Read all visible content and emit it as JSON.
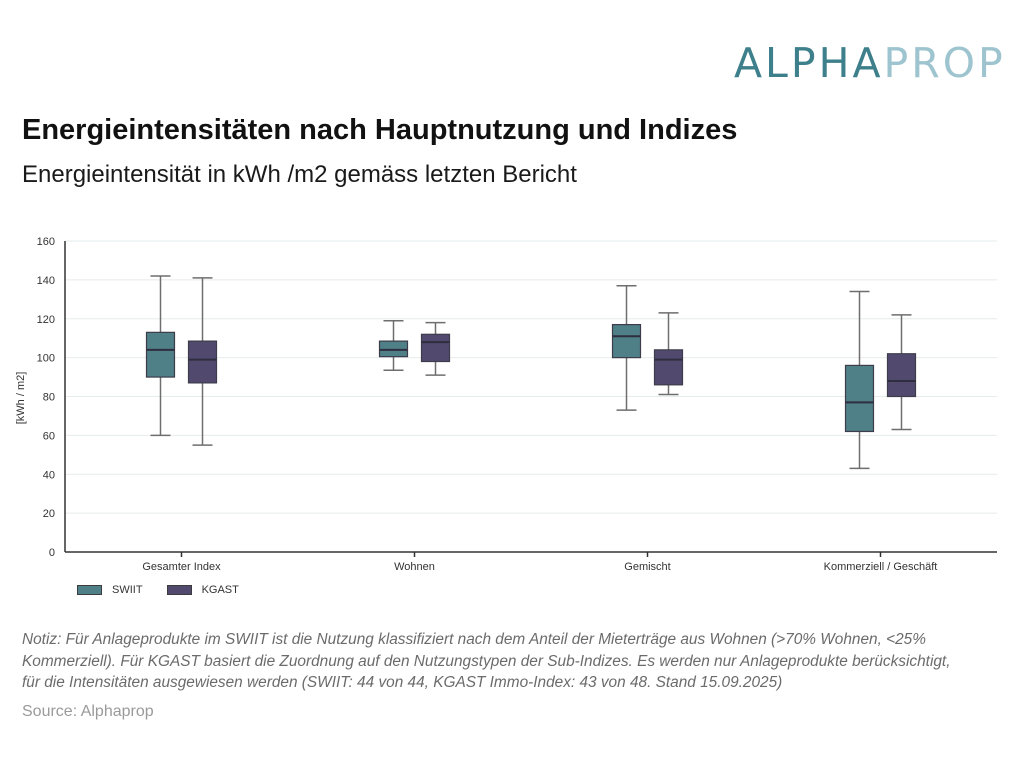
{
  "logo": {
    "part1": "ALPHA",
    "part2": "PROP"
  },
  "header": {
    "title": "Energieintensitäten nach Hauptnutzung und Indizes",
    "subtitle": "Energieintensität in kWh /m2 gemäss letzten Bericht"
  },
  "chart_data": {
    "type": "box",
    "title": "Energieintensitäten nach Hauptnutzung und Indizes",
    "ylabel": "[kWh / m2]",
    "xlabel": "",
    "ylim": [
      0,
      160
    ],
    "yticks": [
      0,
      20,
      40,
      60,
      80,
      100,
      120,
      140,
      160
    ],
    "grid": true,
    "legend": "bottom-left",
    "categories": [
      "Gesamter Index",
      "Wohnen",
      "Gemischt",
      "Kommerziell / Geschäft"
    ],
    "series": [
      {
        "name": "SWIIT",
        "color": "#4f7f87",
        "boxes": [
          {
            "min": 60,
            "q1": 90,
            "median": 104,
            "q3": 113,
            "max": 142
          },
          {
            "min": 93.5,
            "q1": 100.5,
            "median": 104,
            "q3": 108.5,
            "max": 119
          },
          {
            "min": 73,
            "q1": 100,
            "median": 111,
            "q3": 117,
            "max": 137
          },
          {
            "min": 43,
            "q1": 62,
            "median": 77,
            "q3": 96,
            "max": 134
          }
        ]
      },
      {
        "name": "KGAST",
        "color": "#524a6e",
        "boxes": [
          {
            "min": 55,
            "q1": 87,
            "median": 99,
            "q3": 108.5,
            "max": 141
          },
          {
            "min": 91,
            "q1": 98,
            "median": 108,
            "q3": 112,
            "max": 118
          },
          {
            "min": 81,
            "q1": 86,
            "median": 99,
            "q3": 104,
            "max": 123
          },
          {
            "min": 63,
            "q1": 80,
            "median": 88,
            "q3": 102,
            "max": 122
          }
        ]
      }
    ]
  },
  "notes": {
    "lines": [
      "Notiz: Für Anlageprodukte im SWIIT ist die Nutzung klassifiziert nach dem Anteil der Mieterträge aus Wohnen (>70% Wohnen, <25%",
      "Kommerziell). Für KGAST basiert die Zuordnung auf den Nutzungstypen der Sub-Indizes. Es werden nur Anlageprodukte berücksichtigt,",
      "für die Intensitäten ausgewiesen werden (SWIIT:  44 von 44, KGAST Immo-Index: 43 von 48. Stand 15.09.2025)"
    ],
    "source": "Source: Alphaprop"
  }
}
